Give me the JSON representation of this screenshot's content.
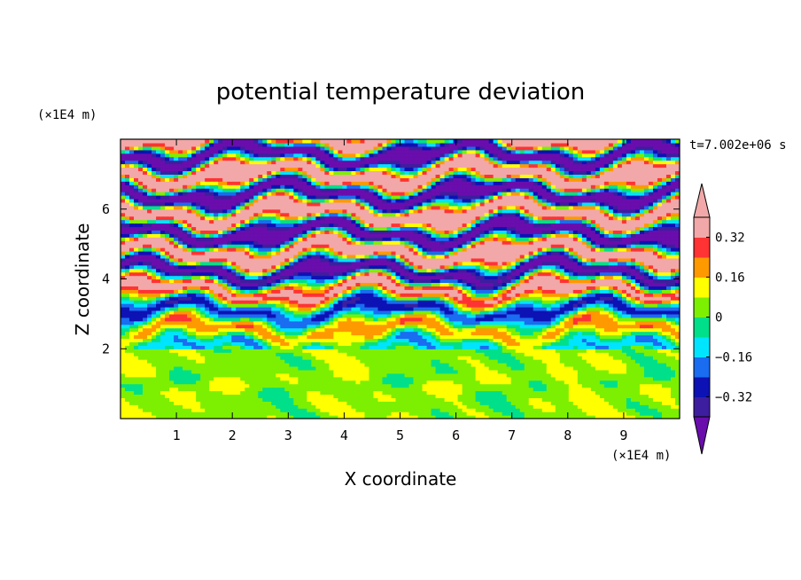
{
  "chart_data": {
    "type": "heatmap",
    "title": "potential temperature deviation",
    "xlabel": "X coordinate",
    "ylabel": "Z coordinate",
    "x_unit": "(×1E4 m)",
    "y_unit": "(×1E4 m)",
    "time_label": "t=7.002e+06 s",
    "xlim": [
      0,
      10
    ],
    "ylim": [
      0,
      8
    ],
    "x_ticks": [
      1,
      2,
      3,
      4,
      5,
      6,
      7,
      8,
      9
    ],
    "y_ticks": [
      2,
      4,
      6
    ],
    "colorbar": {
      "levels": [
        -0.4,
        -0.32,
        -0.24,
        -0.16,
        -0.08,
        0,
        0.08,
        0.16,
        0.24,
        0.32,
        0.4
      ],
      "tick_labels": [
        "0.32",
        "0.16",
        "0",
        "−0.16",
        "−0.32"
      ],
      "tick_values": [
        0.32,
        0.16,
        0,
        -0.16,
        -0.32
      ],
      "colors": [
        "#6a0dad",
        "#3d1e9e",
        "#0c12b4",
        "#1a6cf0",
        "#00e5ff",
        "#00e08a",
        "#7cf000",
        "#ffff00",
        "#ff9900",
        "#ff3333",
        "#f2a8a8"
      ],
      "extend": "both"
    },
    "description_regions": {
      "lower_layer_z_top": 2,
      "lower_layer_colors": [
        "#7cf000",
        "#00e08a",
        "#ffff00"
      ],
      "upper_band_colors": [
        "#f2a8a8",
        "#3d1e9e",
        "#6a0dad",
        "#ff3333",
        "#ff9900",
        "#00e5ff",
        "#1a6cf0",
        "#00e08a"
      ]
    }
  }
}
